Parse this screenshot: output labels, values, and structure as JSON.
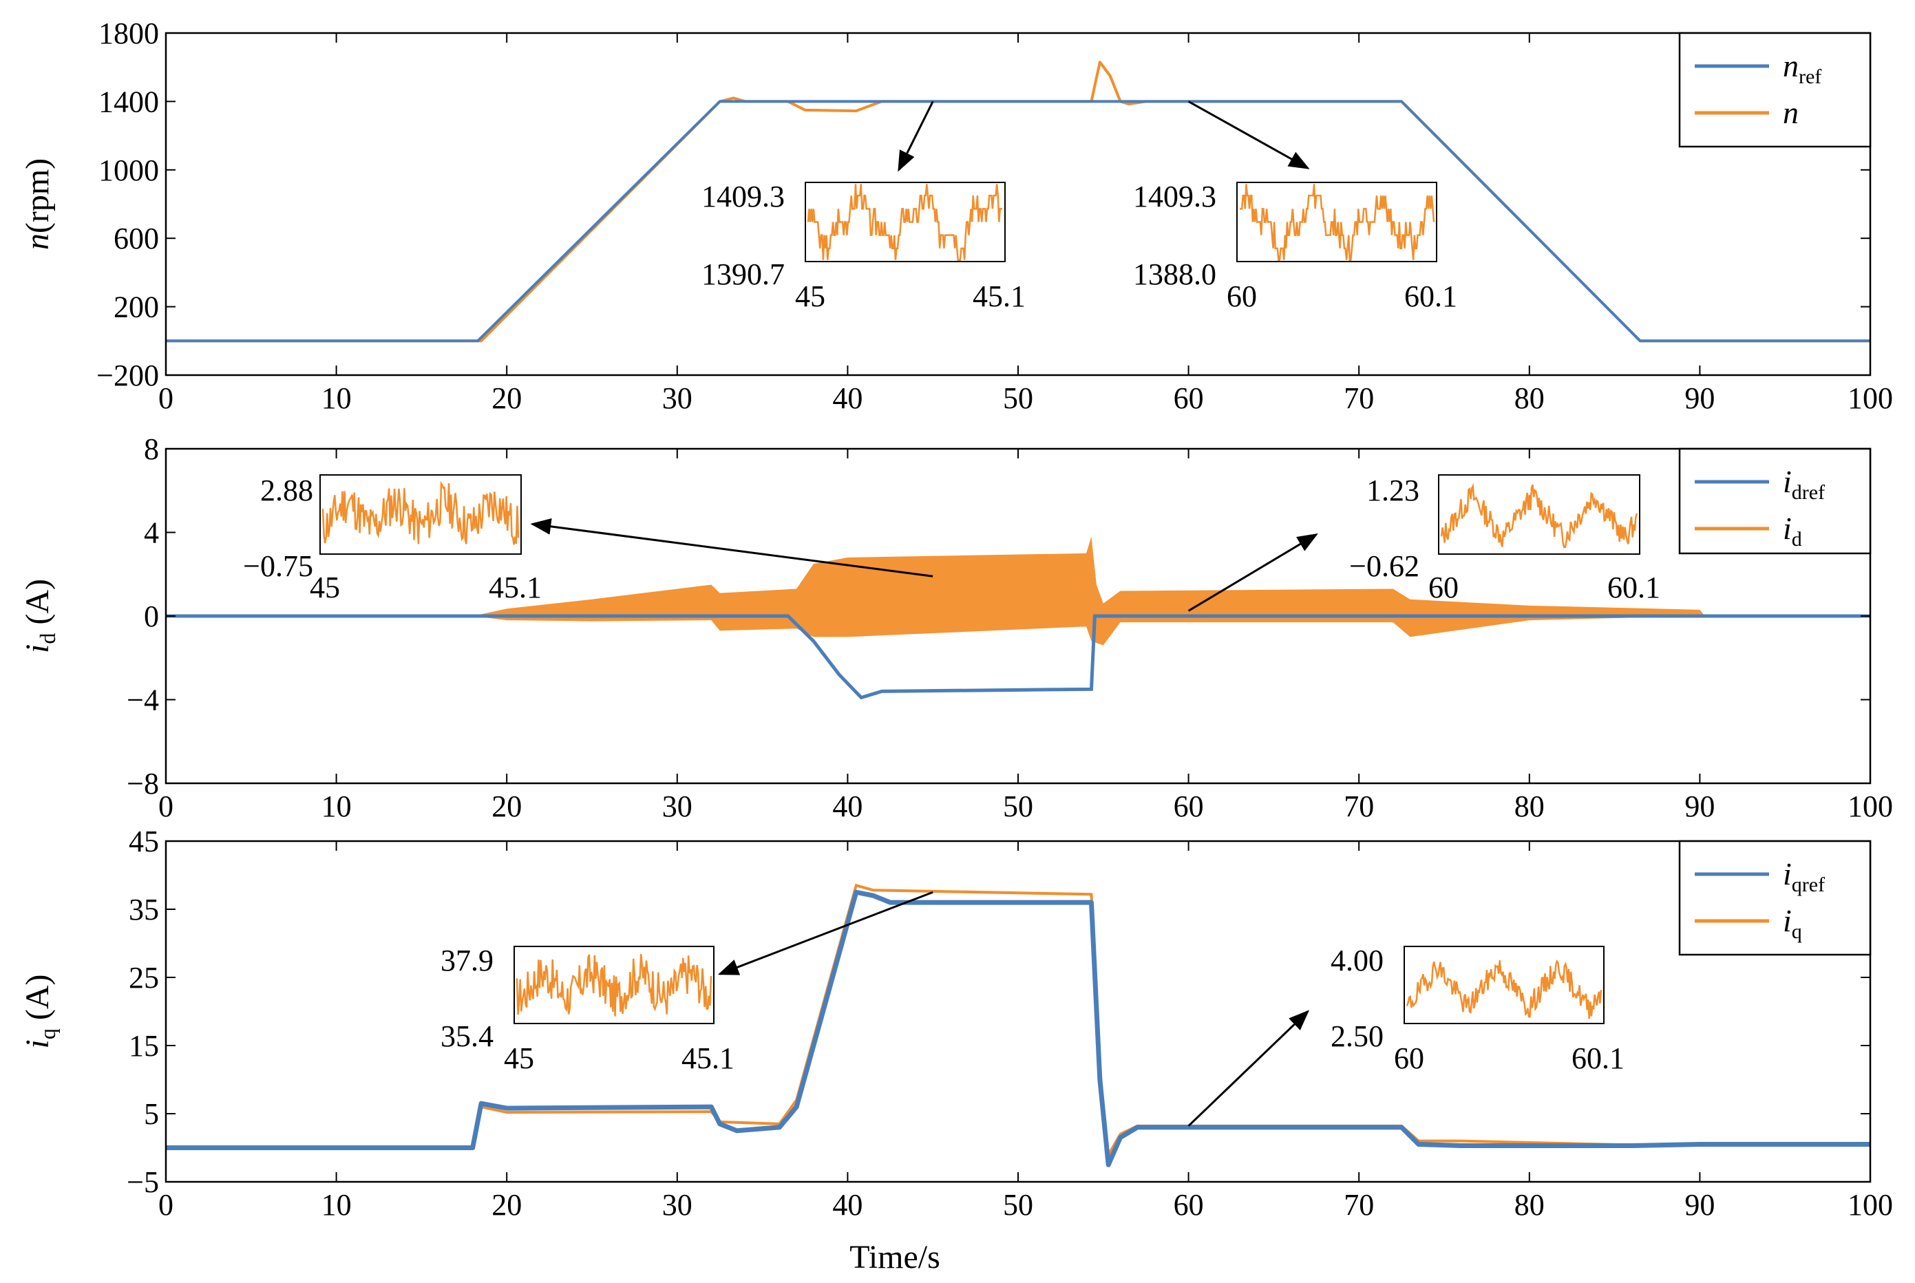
{
  "chart_data": [
    {
      "type": "line",
      "panel": "speed",
      "ylabel_italic": "n",
      "ylabel_rest": "(rpm)",
      "xlim": [
        0,
        100
      ],
      "ylim": [
        -200,
        1800
      ],
      "xticks": [
        0,
        10,
        20,
        30,
        40,
        50,
        60,
        70,
        80,
        90,
        100
      ],
      "yticks": [
        -200,
        200,
        600,
        1000,
        1400,
        1800
      ],
      "ytick_labels": [
        "−200",
        "200",
        "600",
        "1000",
        "1400",
        "1800"
      ],
      "legend_position": "top-right",
      "series": [
        {
          "name": "n",
          "sub": "ref",
          "color": "#4a7ebb",
          "points": [
            [
              0,
              0
            ],
            [
              18.3,
              0
            ],
            [
              32.5,
              1400
            ],
            [
              72.5,
              1400
            ],
            [
              86.5,
              0
            ],
            [
              100,
              0
            ]
          ]
        },
        {
          "name": "n",
          "sub": "",
          "color": "#f28e2b",
          "points": [
            [
              0,
              0
            ],
            [
              18.5,
              0
            ],
            [
              32.5,
              1400
            ],
            [
              33.3,
              1420
            ],
            [
              34,
              1400
            ],
            [
              36.5,
              1400
            ],
            [
              37.5,
              1350
            ],
            [
              40.5,
              1345
            ],
            [
              42,
              1400
            ],
            [
              54.3,
              1400
            ],
            [
              54.8,
              1630
            ],
            [
              55.4,
              1550
            ],
            [
              56,
              1400
            ],
            [
              56.5,
              1385
            ],
            [
              57.5,
              1400
            ],
            [
              72.5,
              1400
            ],
            [
              86.5,
              0
            ],
            [
              100,
              0
            ]
          ]
        }
      ],
      "insets": [
        {
          "ymax_label": "1409.3",
          "ymin_label": "1390.7",
          "x0_label": "45",
          "x1_label": "45.1",
          "shape": "steps",
          "seed": 3,
          "arrow_from": [
            45,
            1400
          ],
          "arrow_to": [
            43,
            1000
          ]
        },
        {
          "ymax_label": "1409.3",
          "ymin_label": "1388.0",
          "x0_label": "60",
          "x1_label": "60.1",
          "shape": "steps",
          "seed": 7,
          "arrow_from": [
            60,
            1400
          ],
          "arrow_to": [
            67,
            1010
          ]
        }
      ]
    },
    {
      "type": "line",
      "panel": "id",
      "ylabel_italic": "i",
      "ylabel_sub": "d",
      "ylabel_rest": " (A)",
      "xlim": [
        0,
        100
      ],
      "ylim": [
        -8,
        8
      ],
      "xticks": [
        0,
        10,
        20,
        30,
        40,
        50,
        60,
        70,
        80,
        90,
        100
      ],
      "yticks": [
        -8,
        -4,
        0,
        4,
        8
      ],
      "ytick_labels": [
        "−8",
        "−4",
        "0",
        "4",
        "8"
      ],
      "legend_position": "top-right",
      "series": [
        {
          "name": "i",
          "sub": "dref",
          "color": "#4a7ebb",
          "points": [
            [
              0,
              0
            ],
            [
              36.5,
              0
            ],
            [
              38,
              -1.2
            ],
            [
              39.5,
              -2.8
            ],
            [
              40.8,
              -3.9
            ],
            [
              42,
              -3.6
            ],
            [
              54.3,
              -3.5
            ],
            [
              54.5,
              0
            ],
            [
              100,
              0
            ]
          ]
        },
        {
          "name": "i",
          "sub": "d",
          "color": "#f28e2b",
          "band_upper": [
            [
              18,
              0
            ],
            [
              20,
              0.35
            ],
            [
              25,
              0.8
            ],
            [
              32,
              1.5
            ],
            [
              32.5,
              1.1
            ],
            [
              37,
              1.3
            ],
            [
              38,
              2.5
            ],
            [
              40,
              2.8
            ],
            [
              54,
              3.0
            ],
            [
              54.3,
              3.8
            ],
            [
              54.6,
              1.5
            ],
            [
              55,
              0.6
            ],
            [
              56,
              1.2
            ],
            [
              72,
              1.3
            ],
            [
              73,
              0.8
            ],
            [
              80,
              0.5
            ],
            [
              90,
              0.3
            ],
            [
              90.3,
              0
            ]
          ],
          "band_lower": [
            [
              18,
              0
            ],
            [
              20,
              -0.2
            ],
            [
              25,
              -0.25
            ],
            [
              32,
              -0.2
            ],
            [
              32.5,
              -0.7
            ],
            [
              37,
              -0.6
            ],
            [
              38,
              -1.0
            ],
            [
              40,
              -1.0
            ],
            [
              54,
              -0.5
            ],
            [
              54.3,
              -1.2
            ],
            [
              55,
              -1.4
            ],
            [
              56,
              -0.3
            ],
            [
              72,
              -0.3
            ],
            [
              73,
              -1.0
            ],
            [
              80,
              -0.2
            ],
            [
              90,
              0
            ],
            [
              90.3,
              0
            ]
          ]
        }
      ],
      "insets": [
        {
          "ymax_label": "2.88",
          "ymin_label": "−0.75",
          "x0_label": "45",
          "x1_label": "45.1",
          "shape": "noise",
          "seed": 11,
          "arrow_from": [
            45,
            1.9
          ],
          "arrow_to": [
            21.5,
            4.4
          ]
        },
        {
          "ymax_label": "1.23",
          "ymin_label": "−0.62",
          "x0_label": "60",
          "x1_label": "60.1",
          "shape": "tri",
          "seed": 13,
          "arrow_from": [
            60,
            0.25
          ],
          "arrow_to": [
            67.5,
            3.9
          ]
        }
      ]
    },
    {
      "type": "line",
      "panel": "iq",
      "ylabel_italic": "i",
      "ylabel_sub": "q",
      "ylabel_rest": " (A)",
      "xlabel": "Time/s",
      "xlim": [
        0,
        100
      ],
      "ylim": [
        -5,
        45
      ],
      "xticks": [
        0,
        10,
        20,
        30,
        40,
        50,
        60,
        70,
        80,
        90,
        100
      ],
      "yticks": [
        -5,
        5,
        15,
        25,
        35,
        45
      ],
      "ytick_labels": [
        "−5",
        "5",
        "15",
        "25",
        "35",
        "45"
      ],
      "legend_position": "top-right",
      "series": [
        {
          "name": "i",
          "sub": "qref",
          "color": "#4a7ebb",
          "points": [
            [
              0,
              0
            ],
            [
              18,
              0
            ],
            [
              18.5,
              6.5
            ],
            [
              20,
              5.8
            ],
            [
              32,
              6.0
            ],
            [
              32.5,
              3.5
            ],
            [
              33.5,
              2.5
            ],
            [
              36,
              3.0
            ],
            [
              37,
              6
            ],
            [
              40.5,
              37.5
            ],
            [
              41.5,
              37
            ],
            [
              42.5,
              36
            ],
            [
              54.3,
              36
            ],
            [
              54.8,
              10
            ],
            [
              55.3,
              -2.5
            ],
            [
              56,
              1.5
            ],
            [
              57,
              3.0
            ],
            [
              72.5,
              3.0
            ],
            [
              73.5,
              0.5
            ],
            [
              76,
              0.3
            ],
            [
              86,
              0.3
            ],
            [
              90,
              0.5
            ],
            [
              100,
              0.5
            ]
          ]
        },
        {
          "name": "i",
          "sub": "q",
          "color": "#f28e2b",
          "points": [
            [
              0,
              0
            ],
            [
              18,
              0
            ],
            [
              18.5,
              6
            ],
            [
              20,
              5.2
            ],
            [
              32,
              5.3
            ],
            [
              32.5,
              3.8
            ],
            [
              36,
              3.5
            ],
            [
              37,
              7
            ],
            [
              40.5,
              38.5
            ],
            [
              41.5,
              37.8
            ],
            [
              54.3,
              37.2
            ],
            [
              54.8,
              12
            ],
            [
              55.2,
              -1.5
            ],
            [
              56,
              2
            ],
            [
              57,
              3.2
            ],
            [
              72.5,
              3.2
            ],
            [
              73.5,
              1.0
            ],
            [
              76,
              1.0
            ],
            [
              86,
              0.4
            ],
            [
              90,
              0.6
            ],
            [
              100,
              0.5
            ]
          ]
        }
      ],
      "insets": [
        {
          "ymax_label": "37.9",
          "ymin_label": "35.4",
          "x0_label": "45",
          "x1_label": "45.1",
          "shape": "noise",
          "seed": 17,
          "arrow_from": [
            45,
            37.5
          ],
          "arrow_to": [
            32.5,
            25.5
          ]
        },
        {
          "ymax_label": "4.00",
          "ymin_label": "2.50",
          "x0_label": "60",
          "x1_label": "60.1",
          "shape": "tri",
          "seed": 19,
          "arrow_from": [
            60,
            3.2
          ],
          "arrow_to": [
            67,
            20
          ]
        }
      ]
    }
  ]
}
